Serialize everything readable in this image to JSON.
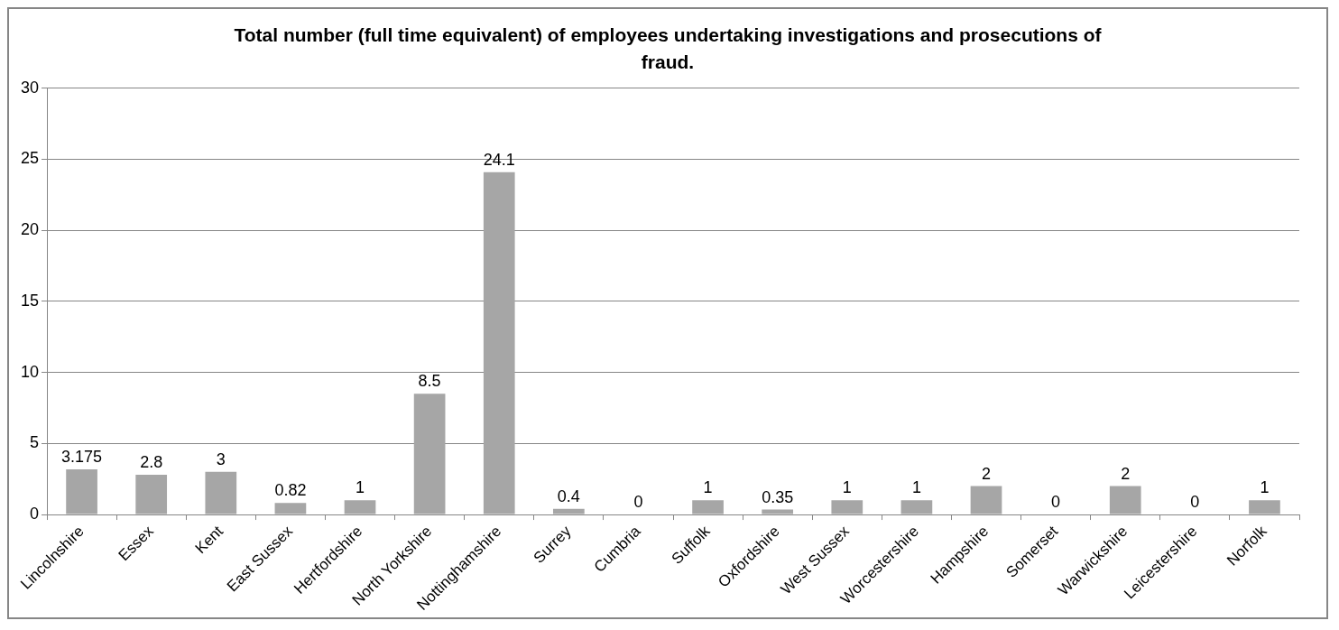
{
  "chart_data": {
    "type": "bar",
    "title": "Total number (full time equivalent) of employees undertaking investigations and prosecutions of fraud.",
    "categories": [
      "Lincolnshire",
      "Essex",
      "Kent",
      "East Sussex",
      "Hertfordshire",
      "North Yorkshire",
      "Nottinghamshire",
      "Surrey",
      "Cumbria",
      "Suffolk",
      "Oxfordshire",
      "West Sussex",
      "Worcestershire",
      "Hampshire",
      "Somerset",
      "Warwickshire",
      "Leicestershire",
      "Norfolk"
    ],
    "values": [
      3.175,
      2.8,
      3,
      0.82,
      1,
      8.5,
      24.1,
      0.4,
      0,
      1,
      0.35,
      1,
      1,
      2,
      0,
      2,
      0,
      1
    ],
    "color": "#a6a6a6",
    "ylim": [
      0,
      30
    ],
    "yticks": [
      0,
      5,
      10,
      15,
      20,
      25,
      30
    ],
    "grid": "y",
    "legend": false,
    "data_labels": true
  }
}
